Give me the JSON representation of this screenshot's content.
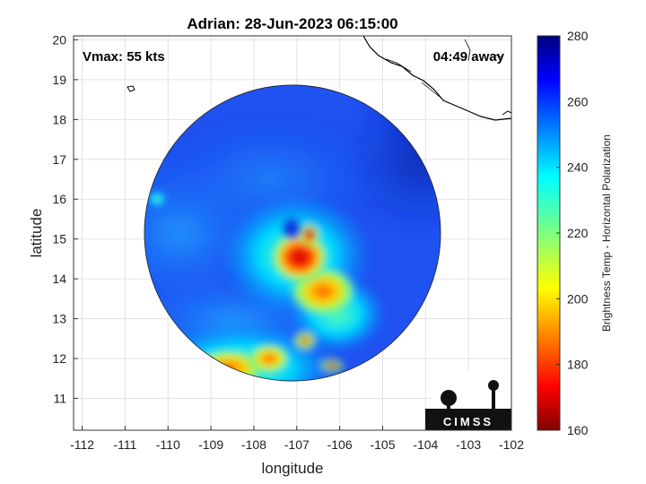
{
  "chart_data": {
    "type": "heatmap",
    "title": "Adrian: 28-Jun-2023 06:15:00",
    "xlabel": "longitude",
    "ylabel": "latitude",
    "xlim": [
      -112.2,
      -102
    ],
    "ylim": [
      10.2,
      20.1
    ],
    "xticks": [
      "-112",
      "-111",
      "-110",
      "-109",
      "-108",
      "-107",
      "-106",
      "-105",
      "-104",
      "-103",
      "-102"
    ],
    "yticks": [
      "11",
      "12",
      "13",
      "14",
      "15",
      "16",
      "17",
      "18",
      "19",
      "20"
    ],
    "grid": true,
    "annotations": {
      "vmax": "Vmax: 55 kts",
      "time_away": "04:49 away"
    },
    "storm_center": {
      "lon": -106.9,
      "lat": 14.7
    },
    "swath": {
      "center_lon": -107.1,
      "center_lat": 15.15,
      "radius_deg": 3.45
    },
    "colorbar": {
      "label": "Brightness Temp - Horizontal Polarization",
      "range": [
        160,
        280
      ],
      "ticks": [
        "280",
        "260",
        "240",
        "220",
        "200",
        "180",
        "160"
      ],
      "colormap": "jet"
    },
    "logo": "CIMSS"
  }
}
